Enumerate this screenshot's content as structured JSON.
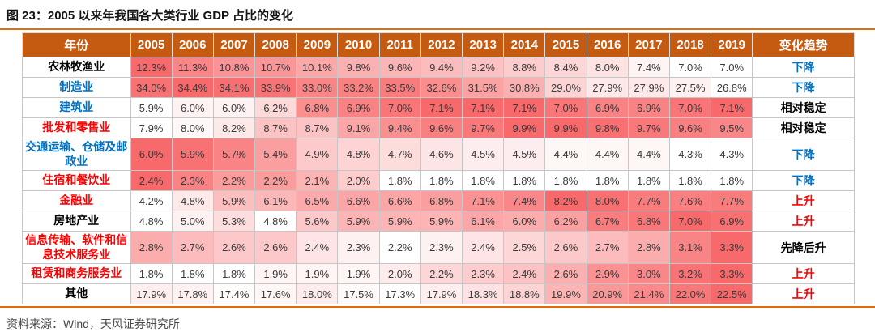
{
  "title": "图 23：2005 以来年我国各大类行业 GDP 占比的变化",
  "source": "资料来源：Wind，天风证券研究所",
  "colors": {
    "header_bg": "#C55A11",
    "accent_rule": "#E36C0A",
    "heat_min": "#FFFFFF",
    "heat_max": "#F8696B",
    "trend_up": "#FF0000",
    "trend_down": "#0070C0",
    "neutral_text": "#000000",
    "value_text": "#3A3A3A"
  },
  "chart_data": {
    "type": "table",
    "title": "2005 以来年我国各大类行业 GDP 占比的变化",
    "corner_header": "年份",
    "trend_header": "变化趋势",
    "unit": "%",
    "heatmap": {
      "scale": "per-row",
      "min_color": "#FFFFFF",
      "max_color": "#F8696B"
    },
    "columns": [
      "2005",
      "2006",
      "2007",
      "2008",
      "2009",
      "2010",
      "2011",
      "2012",
      "2013",
      "2014",
      "2015",
      "2016",
      "2017",
      "2018",
      "2019"
    ],
    "rows": [
      {
        "label": "农林牧渔业",
        "label_color": "#000000",
        "values": [
          12.3,
          11.3,
          10.8,
          10.7,
          10.1,
          9.8,
          9.6,
          9.4,
          9.2,
          8.8,
          8.4,
          8.0,
          7.4,
          7.0,
          7.0
        ],
        "trend": "下降",
        "trend_color": "#0070C0"
      },
      {
        "label": "制造业",
        "label_color": "#0070C0",
        "values": [
          34.0,
          34.4,
          34.1,
          33.9,
          33.0,
          33.2,
          33.5,
          32.6,
          31.5,
          30.8,
          29.0,
          27.9,
          27.9,
          27.5,
          26.8
        ],
        "trend": "下降",
        "trend_color": "#0070C0"
      },
      {
        "label": "建筑业",
        "label_color": "#0070C0",
        "values": [
          5.9,
          6.0,
          6.0,
          6.2,
          6.8,
          6.9,
          7.0,
          7.1,
          7.1,
          7.1,
          7.0,
          6.9,
          6.9,
          7.0,
          7.1
        ],
        "trend": "相对稳定",
        "trend_color": "#000000"
      },
      {
        "label": "批发和零售业",
        "label_color": "#FF0000",
        "values": [
          7.9,
          8.0,
          8.2,
          8.7,
          8.7,
          9.1,
          9.4,
          9.6,
          9.7,
          9.9,
          9.9,
          9.8,
          9.7,
          9.6,
          9.5
        ],
        "trend": "相对稳定",
        "trend_color": "#000000"
      },
      {
        "label": "交通运输、仓储及邮政业",
        "label_color": "#0070C0",
        "values": [
          6.0,
          5.9,
          5.7,
          5.4,
          4.9,
          4.8,
          4.7,
          4.6,
          4.5,
          4.5,
          4.4,
          4.4,
          4.4,
          4.3,
          4.3
        ],
        "trend": "下降",
        "trend_color": "#0070C0"
      },
      {
        "label": "住宿和餐饮业",
        "label_color": "#FF0000",
        "values": [
          2.4,
          2.3,
          2.2,
          2.2,
          2.1,
          2.0,
          1.8,
          1.8,
          1.8,
          1.8,
          1.8,
          1.8,
          1.8,
          1.8,
          1.8
        ],
        "trend": "下降",
        "trend_color": "#0070C0"
      },
      {
        "label": "金融业",
        "label_color": "#FF0000",
        "values": [
          4.2,
          4.8,
          5.9,
          6.1,
          6.5,
          6.6,
          6.6,
          6.8,
          7.1,
          7.4,
          8.2,
          8.0,
          7.7,
          7.6,
          7.7
        ],
        "trend": "上升",
        "trend_color": "#FF0000"
      },
      {
        "label": "房地产业",
        "label_color": "#000000",
        "values": [
          4.8,
          5.0,
          5.3,
          4.8,
          5.6,
          5.9,
          5.9,
          5.9,
          6.1,
          6.0,
          6.2,
          6.7,
          6.8,
          7.0,
          6.9
        ],
        "trend": "上升",
        "trend_color": "#FF0000"
      },
      {
        "label": "信息传输、软件和信息技术服务业",
        "label_color": "#FF0000",
        "values": [
          2.8,
          2.7,
          2.6,
          2.6,
          2.4,
          2.3,
          2.2,
          2.3,
          2.4,
          2.5,
          2.6,
          2.7,
          2.8,
          3.1,
          3.3
        ],
        "trend": "先降后升",
        "trend_color": "#000000"
      },
      {
        "label": "租赁和商务服务业",
        "label_color": "#FF0000",
        "values": [
          1.8,
          1.8,
          1.8,
          1.9,
          1.9,
          1.9,
          2.0,
          2.2,
          2.3,
          2.4,
          2.6,
          2.9,
          3.0,
          3.2,
          3.3
        ],
        "trend": "上升",
        "trend_color": "#FF0000"
      },
      {
        "label": "其他",
        "label_color": "#000000",
        "values": [
          17.9,
          17.8,
          17.4,
          17.6,
          18.0,
          17.5,
          17.3,
          17.9,
          18.3,
          18.8,
          19.9,
          20.9,
          21.4,
          22.0,
          22.5
        ],
        "trend": "上升",
        "trend_color": "#FF0000"
      }
    ]
  }
}
